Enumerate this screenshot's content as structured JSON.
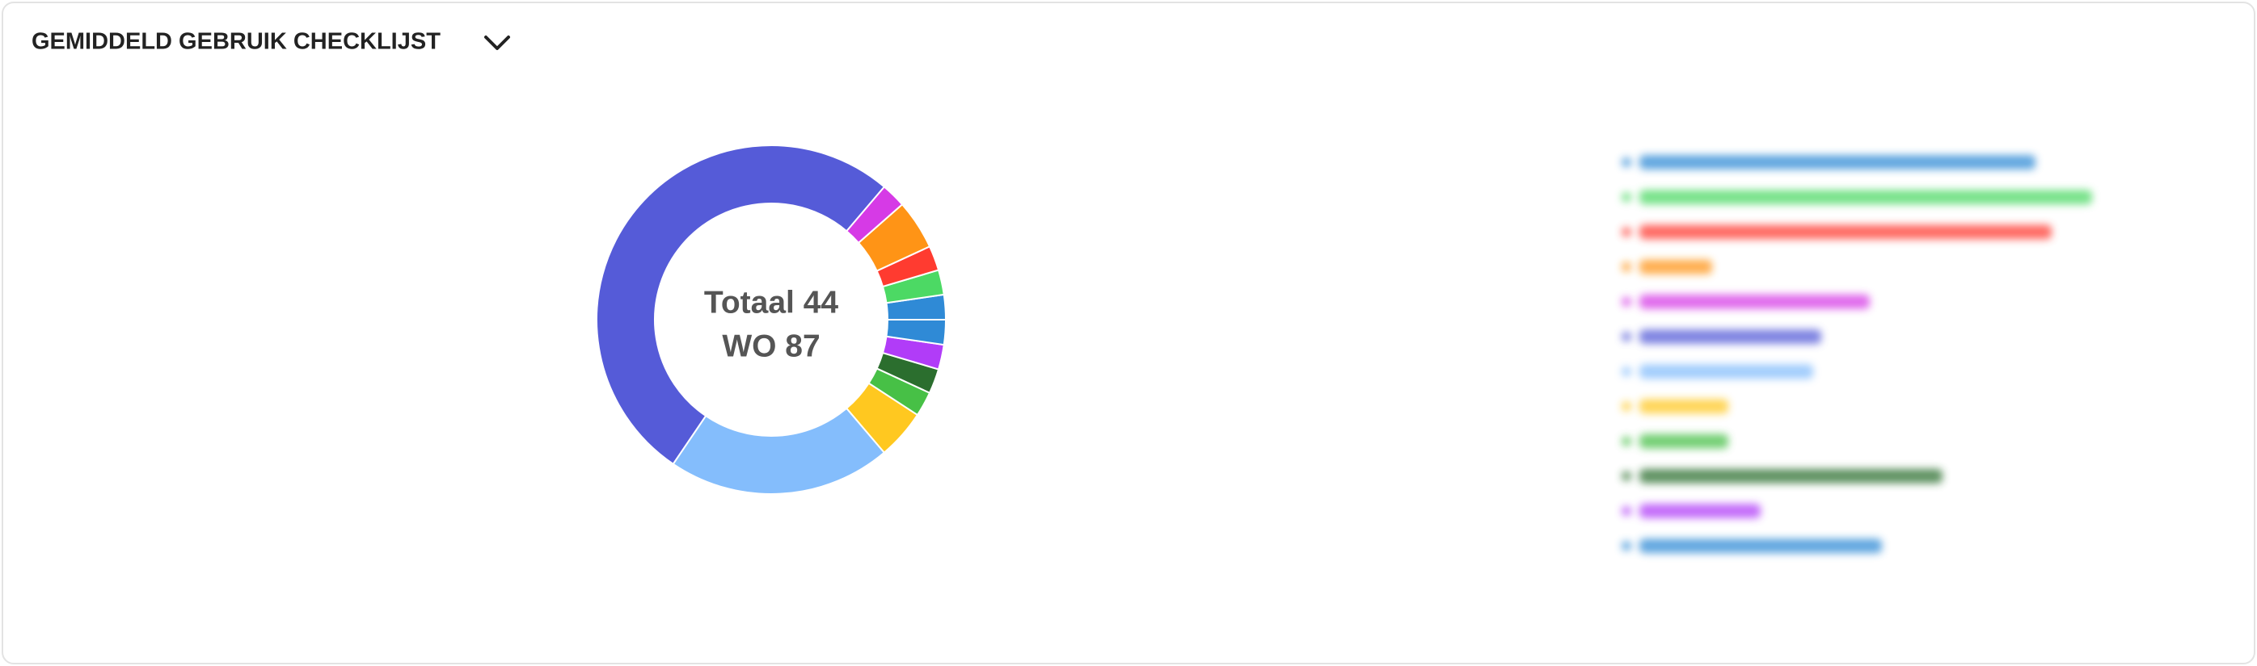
{
  "header": {
    "title": "GEMIDDELD GEBRUIK CHECKLIJST"
  },
  "chart_data": {
    "type": "donut",
    "center_label": [
      "Totaal 44",
      "WO 87"
    ],
    "values": [
      2,
      2,
      2,
      4,
      2,
      45,
      18,
      4,
      2,
      2,
      2,
      2
    ],
    "colors": [
      "#2f8ad6",
      "#4cd964",
      "#ff3b30",
      "#ff9416",
      "#d63ae6",
      "#555bd8",
      "#84bdfc",
      "#ffc820",
      "#47c046",
      "#2b6e2e",
      "#b13cf8",
      "#2f8ad6"
    ]
  }
}
